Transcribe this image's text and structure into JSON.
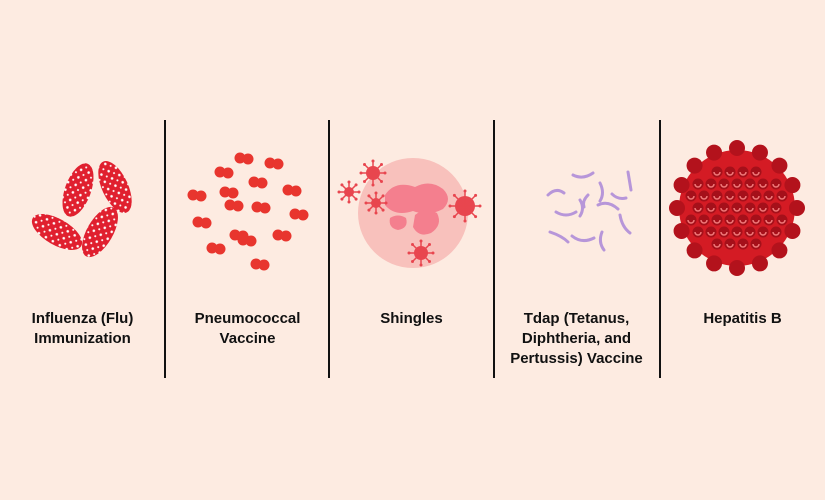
{
  "items": [
    {
      "lines": [
        "Influenza (Flu)",
        "Immunization"
      ]
    },
    {
      "lines": [
        "Pneumococcal",
        "Vaccine"
      ]
    },
    {
      "lines": [
        "Shingles"
      ]
    },
    {
      "lines": [
        "Tdap (Tetanus,",
        "Diphtheria, and",
        "Pertussis) Vaccine"
      ]
    },
    {
      "lines": [
        "Hepatitis B"
      ]
    }
  ]
}
